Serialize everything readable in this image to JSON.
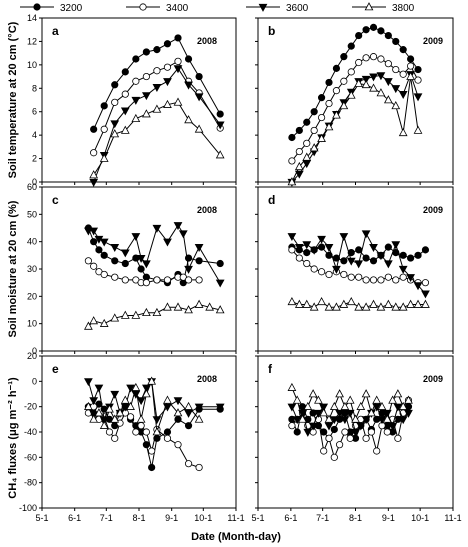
{
  "legend": {
    "markers": [
      "filled-circle",
      "open-circle",
      "filled-triangle-down",
      "open-triangle-up"
    ],
    "entries": [
      "3200",
      "3400",
      "3600",
      "3800"
    ]
  },
  "x_label": "Date (Month-day)",
  "x_ticks_left": [
    "5-1",
    "6-1",
    "7-1",
    "8-1",
    "9-1",
    "10-1",
    "11-1"
  ],
  "x_ticks_right": [
    "5-1",
    "6-1",
    "7-1",
    "8-1",
    "9-1",
    "10-1",
    "11-1"
  ],
  "rows": [
    {
      "ylabel": "Soil temperature at 20 cm (°C)",
      "ylim": [
        0,
        14
      ],
      "yticks": [
        "0",
        "2",
        "4",
        "6",
        "8",
        "10",
        "12",
        "14"
      ]
    },
    {
      "ylabel": "Soil moisture at 20 cm (%)",
      "ylim": [
        0,
        60
      ],
      "yticks": [
        "0",
        "10",
        "20",
        "30",
        "40",
        "50",
        "60"
      ]
    },
    {
      "ylabel": "CH₄ fluxes (μg m⁻² h⁻¹)",
      "ylim": [
        -100,
        20
      ],
      "yticks": [
        "-100",
        "-80",
        "-60",
        "-40",
        "-20",
        "0",
        "20"
      ]
    }
  ],
  "chart_data": [
    {
      "type": "line",
      "panel": "a",
      "year_label": "2008",
      "x_unit": "day-of-year",
      "ylim": [
        0,
        14
      ],
      "series": [
        {
          "name": "3200",
          "x": [
            170,
            180,
            190,
            200,
            210,
            220,
            230,
            240,
            250,
            260,
            270,
            290
          ],
          "y": [
            4.5,
            6.5,
            8.3,
            9.4,
            10.5,
            11.1,
            11.3,
            11.8,
            12.3,
            10.5,
            9.0,
            5.8
          ]
        },
        {
          "name": "3400",
          "x": [
            170,
            180,
            190,
            200,
            210,
            220,
            230,
            240,
            250,
            260,
            270,
            290
          ],
          "y": [
            2.5,
            4.5,
            6.8,
            7.5,
            8.6,
            9.0,
            9.5,
            9.8,
            10.3,
            8.6,
            7.6,
            4.6
          ]
        },
        {
          "name": "3600",
          "x": [
            170,
            180,
            190,
            200,
            210,
            220,
            230,
            240,
            250,
            260,
            270,
            290
          ],
          "y": [
            0.0,
            2.3,
            5.0,
            6.1,
            7.0,
            7.4,
            8.1,
            8.6,
            9.7,
            8.3,
            7.3,
            4.9
          ]
        },
        {
          "name": "3800",
          "x": [
            170,
            180,
            190,
            200,
            210,
            220,
            230,
            240,
            250,
            260,
            270,
            290
          ],
          "y": [
            0.6,
            2.0,
            4.1,
            4.4,
            5.4,
            5.8,
            6.2,
            6.6,
            6.8,
            5.3,
            4.5,
            2.3
          ]
        }
      ]
    },
    {
      "type": "line",
      "panel": "b",
      "year_label": "2009",
      "x_unit": "day-of-year",
      "ylim": [
        0,
        14
      ],
      "series": [
        {
          "name": "3200",
          "x": [
            153,
            160,
            167,
            174,
            181,
            188,
            195,
            202,
            209,
            216,
            223,
            230,
            237,
            244,
            251,
            258,
            265,
            272
          ],
          "y": [
            3.8,
            4.4,
            5.1,
            6.0,
            7.2,
            8.5,
            9.7,
            10.7,
            11.6,
            12.5,
            13.0,
            13.2,
            12.9,
            12.5,
            12.0,
            11.3,
            10.5,
            9.6
          ]
        },
        {
          "name": "3400",
          "x": [
            153,
            160,
            167,
            174,
            181,
            188,
            195,
            202,
            209,
            216,
            223,
            230,
            237,
            244,
            251,
            258,
            265,
            272
          ],
          "y": [
            1.8,
            2.6,
            3.3,
            4.4,
            5.5,
            6.7,
            7.8,
            8.6,
            9.4,
            10.2,
            10.6,
            10.7,
            10.5,
            10.1,
            9.6,
            9.2,
            9.9,
            8.7
          ]
        },
        {
          "name": "3600",
          "x": [
            153,
            160,
            167,
            174,
            181,
            188,
            195,
            202,
            209,
            216,
            223,
            230,
            237,
            244,
            251,
            258,
            265,
            272
          ],
          "y": [
            0.0,
            0.7,
            1.6,
            2.6,
            3.8,
            4.8,
            5.8,
            6.8,
            7.7,
            8.6,
            8.8,
            9.0,
            9.1,
            8.6,
            8.0,
            7.5,
            9.2,
            7.3
          ]
        },
        {
          "name": "3800",
          "x": [
            153,
            160,
            167,
            174,
            181,
            188,
            195,
            202,
            209,
            216,
            223,
            230,
            237,
            244,
            251,
            258,
            265,
            272
          ],
          "y": [
            0.0,
            1.3,
            2.1,
            2.9,
            3.7,
            4.7,
            5.7,
            6.5,
            7.4,
            8.4,
            8.3,
            8.0,
            7.6,
            7.0,
            6.5,
            4.2,
            9.0,
            4.4
          ]
        }
      ]
    },
    {
      "type": "line",
      "panel": "c",
      "year_label": "2008",
      "x_unit": "day-of-year",
      "ylim": [
        0,
        60
      ],
      "series": [
        {
          "name": "3200",
          "x": [
            165,
            170,
            175,
            180,
            190,
            200,
            210,
            215,
            220,
            230,
            240,
            250,
            255,
            260,
            270,
            290
          ],
          "y": [
            45,
            40,
            37,
            35,
            33,
            32,
            34,
            30,
            27,
            26,
            25,
            28,
            25,
            34,
            33,
            32
          ]
        },
        {
          "name": "3400",
          "x": [
            165,
            170,
            175,
            180,
            190,
            200,
            210,
            215,
            220,
            230,
            240,
            250,
            255,
            260,
            270
          ],
          "y": [
            33,
            31,
            29,
            28,
            27,
            26,
            26,
            25,
            25,
            26,
            26,
            27,
            27,
            26,
            26
          ]
        },
        {
          "name": "3600",
          "x": [
            165,
            170,
            175,
            180,
            190,
            200,
            210,
            215,
            220,
            230,
            240,
            250,
            255,
            260,
            270,
            290
          ],
          "y": [
            44,
            44,
            41,
            40,
            38,
            36,
            42,
            34,
            32,
            45,
            40,
            46,
            43,
            30,
            38,
            25
          ]
        },
        {
          "name": "3800",
          "x": [
            165,
            170,
            180,
            190,
            200,
            210,
            220,
            230,
            240,
            250,
            260,
            270,
            280,
            290
          ],
          "y": [
            9,
            11,
            10,
            12,
            13,
            13,
            14,
            14,
            16,
            16,
            15,
            17,
            16,
            15
          ]
        }
      ]
    },
    {
      "type": "line",
      "panel": "d",
      "year_label": "2009",
      "x_unit": "day-of-year",
      "ylim": [
        0,
        60
      ],
      "series": [
        {
          "name": "3200",
          "x": [
            153,
            160,
            167,
            174,
            181,
            188,
            195,
            202,
            209,
            216,
            223,
            230,
            237,
            244,
            251,
            258,
            265,
            272,
            279
          ],
          "y": [
            38,
            37,
            36,
            37,
            38,
            35,
            34,
            33,
            36,
            37,
            34,
            33,
            35,
            38,
            36,
            35,
            34,
            35,
            37
          ]
        },
        {
          "name": "3400",
          "x": [
            153,
            160,
            167,
            174,
            181,
            188,
            195,
            202,
            209,
            216,
            223,
            230,
            237,
            244,
            251,
            258,
            265,
            272,
            279
          ],
          "y": [
            37,
            34,
            32,
            30,
            29,
            28,
            29,
            28,
            27,
            27,
            26,
            26,
            26,
            27,
            26,
            27,
            26,
            25,
            25
          ]
        },
        {
          "name": "3600",
          "x": [
            153,
            160,
            167,
            174,
            181,
            188,
            195,
            202,
            209,
            216,
            223,
            230,
            237,
            244,
            251,
            258,
            265,
            272,
            279
          ],
          "y": [
            42,
            38,
            39,
            37,
            41,
            38,
            30,
            42,
            33,
            32,
            43,
            38,
            35,
            32,
            39,
            30,
            27,
            24,
            21
          ]
        },
        {
          "name": "3800",
          "x": [
            153,
            160,
            167,
            174,
            181,
            188,
            195,
            202,
            209,
            216,
            223,
            230,
            237,
            244,
            251,
            258,
            265,
            272,
            279
          ],
          "y": [
            18,
            17,
            17,
            16,
            18,
            16,
            16,
            17,
            18,
            16,
            16,
            17,
            16,
            17,
            16,
            16,
            17,
            17,
            17
          ]
        }
      ]
    },
    {
      "type": "line",
      "panel": "e",
      "year_label": "2008",
      "x_unit": "day-of-year",
      "ylim": [
        -100,
        20
      ],
      "series": [
        {
          "name": "3200",
          "x": [
            165,
            170,
            175,
            180,
            185,
            190,
            195,
            200,
            205,
            210,
            215,
            220,
            225,
            230,
            240,
            250,
            260,
            270,
            290
          ],
          "y": [
            -20,
            -25,
            -18,
            -22,
            -30,
            -35,
            -25,
            -20,
            -30,
            -35,
            -40,
            -50,
            -68,
            -45,
            -40,
            -30,
            -35,
            -22,
            -22
          ]
        },
        {
          "name": "3400",
          "x": [
            165,
            170,
            175,
            180,
            185,
            190,
            195,
            200,
            205,
            210,
            215,
            220,
            225,
            230,
            240,
            250,
            260,
            270
          ],
          "y": [
            -25,
            -20,
            -30,
            -28,
            -40,
            -45,
            -33,
            -25,
            -28,
            -40,
            -35,
            -40,
            -55,
            -38,
            -45,
            -50,
            -65,
            -68
          ]
        },
        {
          "name": "3600",
          "x": [
            165,
            170,
            175,
            180,
            185,
            190,
            195,
            200,
            205,
            210,
            215,
            220,
            225,
            230,
            240,
            250,
            260,
            270,
            290
          ],
          "y": [
            0,
            -15,
            -5,
            -30,
            -20,
            -10,
            -25,
            -20,
            -5,
            -10,
            -15,
            -5,
            0,
            -30,
            -20,
            -15,
            -25,
            -20,
            -20
          ]
        },
        {
          "name": "3800",
          "x": [
            165,
            170,
            175,
            180,
            185,
            190,
            195,
            200,
            205,
            210,
            215,
            220,
            225,
            230,
            240,
            250,
            260,
            270
          ],
          "y": [
            -20,
            -30,
            -25,
            -35,
            -22,
            -30,
            -25,
            -15,
            -20,
            -5,
            -30,
            -10,
            0,
            -40,
            -15,
            -25,
            -20,
            -30
          ]
        }
      ]
    },
    {
      "type": "line",
      "panel": "f",
      "year_label": "2009",
      "x_unit": "day-of-year",
      "ylim": [
        -100,
        20
      ],
      "series": [
        {
          "name": "3200",
          "x": [
            153,
            158,
            163,
            168,
            173,
            178,
            183,
            188,
            193,
            198,
            203,
            208,
            213,
            218,
            223,
            228,
            233,
            238,
            243,
            248,
            253,
            258,
            263
          ],
          "y": [
            -30,
            -40,
            -20,
            -30,
            -25,
            -35,
            -40,
            -45,
            -38,
            -30,
            -25,
            -40,
            -45,
            -35,
            -30,
            -38,
            -30,
            -25,
            -35,
            -40,
            -30,
            -25,
            -20
          ]
        },
        {
          "name": "3400",
          "x": [
            153,
            158,
            163,
            168,
            173,
            178,
            183,
            188,
            193,
            198,
            203,
            208,
            213,
            218,
            223,
            228,
            233,
            238,
            243,
            248,
            253,
            258,
            263
          ],
          "y": [
            -35,
            -30,
            -25,
            -35,
            -40,
            -30,
            -55,
            -45,
            -60,
            -50,
            -40,
            -45,
            -35,
            -30,
            -45,
            -40,
            -55,
            -35,
            -40,
            -30,
            -45,
            -25,
            -15
          ]
        },
        {
          "name": "3600",
          "x": [
            153,
            158,
            163,
            168,
            173,
            178,
            183,
            188,
            193,
            198,
            203,
            208,
            213,
            218,
            223,
            228,
            233,
            238,
            243,
            248,
            253,
            258,
            263
          ],
          "y": [
            -20,
            -30,
            -25,
            -40,
            -35,
            -25,
            -20,
            -35,
            -30,
            -25,
            -30,
            -25,
            -40,
            -35,
            -30,
            -25,
            -20,
            -30,
            -25,
            -35,
            -20,
            -30,
            -25
          ]
        },
        {
          "name": "3800",
          "x": [
            153,
            158,
            163,
            168,
            173,
            178,
            183,
            188,
            193,
            198,
            203,
            208,
            213,
            218,
            223,
            228,
            233,
            238,
            243,
            248,
            253,
            258,
            263
          ],
          "y": [
            -5,
            -15,
            -30,
            -20,
            -10,
            -15,
            -25,
            -30,
            -20,
            -10,
            -20,
            -15,
            -30,
            -20,
            -10,
            -25,
            -15,
            -20,
            -30,
            -15,
            -10,
            -20,
            -15
          ]
        }
      ]
    }
  ]
}
